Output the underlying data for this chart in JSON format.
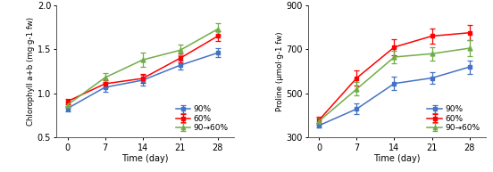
{
  "left_chart": {
    "xlabel": "Time (day)",
    "ylabel": "Chlorophyll a+b (mg·g-1 fw)",
    "x": [
      0,
      7,
      14,
      21,
      28
    ],
    "series": {
      "90%": {
        "y": [
          0.83,
          1.07,
          1.15,
          1.32,
          1.46
        ],
        "yerr": [
          0.03,
          0.05,
          0.06,
          0.05,
          0.05
        ],
        "color": "#4472C4",
        "marker": "s"
      },
      "60%": {
        "y": [
          0.91,
          1.11,
          1.17,
          1.4,
          1.65
        ],
        "yerr": [
          0.03,
          0.04,
          0.05,
          0.05,
          0.06
        ],
        "color": "#FF0000",
        "marker": "s"
      },
      "90→60%": {
        "y": [
          0.87,
          1.18,
          1.38,
          1.49,
          1.73
        ],
        "yerr": [
          0.03,
          0.05,
          0.08,
          0.06,
          0.07
        ],
        "color": "#70AD47",
        "marker": "^"
      }
    },
    "ylim": [
      0.5,
      2.0
    ],
    "yticks": [
      0.5,
      1.0,
      1.5,
      2.0
    ]
  },
  "right_chart": {
    "xlabel": "Time (day)",
    "ylabel": "Proline (μmol·g-1 fw)",
    "x": [
      0,
      7,
      14,
      21,
      28
    ],
    "series": {
      "90%": {
        "y": [
          355,
          430,
          545,
          570,
          620
        ],
        "yerr": [
          10,
          25,
          30,
          25,
          30
        ],
        "color": "#4472C4",
        "marker": "s"
      },
      "60%": {
        "y": [
          380,
          570,
          710,
          760,
          775
        ],
        "yerr": [
          15,
          35,
          35,
          35,
          35
        ],
        "color": "#FF0000",
        "marker": "s"
      },
      "90→60%": {
        "y": [
          375,
          520,
          665,
          680,
          705
        ],
        "yerr": [
          15,
          30,
          30,
          30,
          35
        ],
        "color": "#70AD47",
        "marker": "^"
      }
    },
    "ylim": [
      300,
      900
    ],
    "yticks": [
      300,
      500,
      700,
      900
    ]
  },
  "legend_labels": [
    "90%",
    "60%",
    "90→60%"
  ],
  "background_color": "#ffffff",
  "axes_bg_color": "#ffffff"
}
